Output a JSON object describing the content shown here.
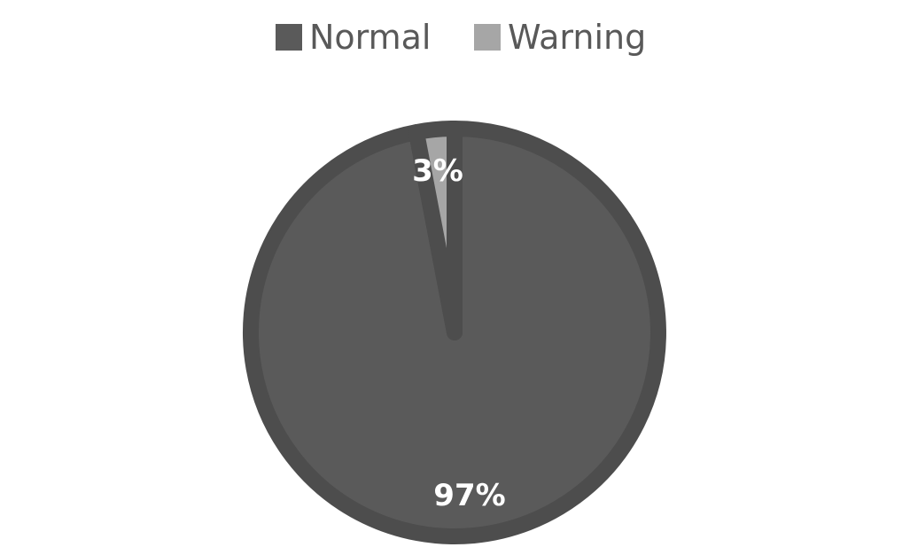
{
  "chart_data": {
    "type": "pie",
    "categories": [
      "Normal",
      "Warning"
    ],
    "values": [
      97,
      3
    ],
    "data_labels": [
      "97%",
      "3%"
    ],
    "legend": {
      "placement": "top",
      "entries": [
        "Normal",
        "Warning"
      ]
    },
    "colors": {
      "Normal": "#5a5a5a",
      "Warning": "#a6a6a6",
      "slice_border": "#4d4d4d",
      "data_label": "#ffffff",
      "legend_text": "#595959"
    }
  }
}
